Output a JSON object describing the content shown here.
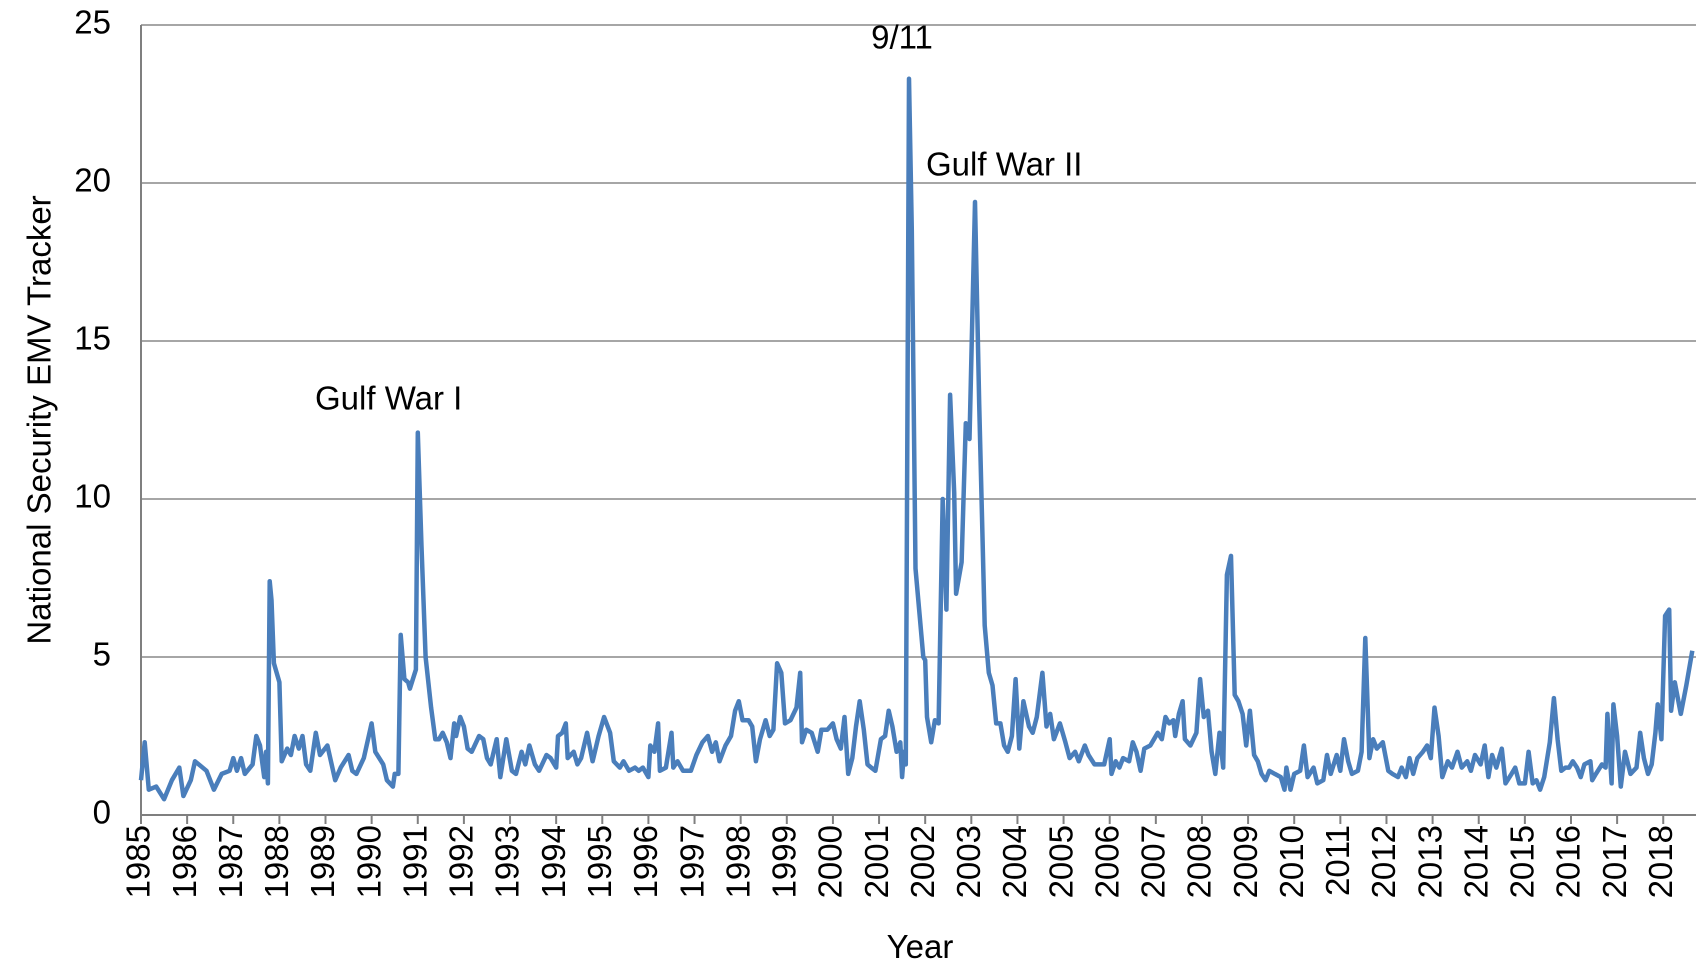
{
  "chart_data": {
    "type": "line",
    "y_label": "National Security EMV Tracker",
    "x_label": "Year",
    "annotations": [
      "9/11",
      "Gulf War II",
      "Gulf War I"
    ],
    "color": "#4a7ebb",
    "grid": true,
    "xlim": [
      1985,
      2018.71
    ],
    "xticks": [
      1985,
      1986,
      1987,
      1988,
      1989,
      1990,
      1991,
      1992,
      1993,
      1994,
      1995,
      1996,
      1997,
      1998,
      1999,
      2000,
      2001,
      2002,
      2003,
      2004,
      2005,
      2006,
      2007,
      2008,
      2009,
      2010,
      2011,
      2012,
      2013,
      2014,
      2015,
      2016,
      2017,
      2018
    ],
    "ylim": [
      0,
      25
    ],
    "yticks": [
      0,
      5,
      10,
      15,
      20,
      25
    ],
    "x": [
      1985.0,
      1985.08,
      1985.17,
      1985.33,
      1985.5,
      1985.67,
      1985.83,
      1985.92,
      1986.08,
      1986.17,
      1986.42,
      1986.58,
      1986.75,
      1986.92,
      1987.0,
      1987.08,
      1987.17,
      1987.25,
      1987.42,
      1987.5,
      1987.58,
      1987.67,
      1987.71,
      1987.75,
      1987.79,
      1987.83,
      1987.88,
      1988.0,
      1988.05,
      1988.17,
      1988.25,
      1988.33,
      1988.42,
      1988.5,
      1988.58,
      1988.67,
      1988.79,
      1988.88,
      1989.04,
      1989.21,
      1989.33,
      1989.5,
      1989.58,
      1989.67,
      1989.83,
      1990.0,
      1990.08,
      1990.25,
      1990.33,
      1990.46,
      1990.5,
      1990.58,
      1990.63,
      1990.71,
      1990.79,
      1990.83,
      1990.96,
      1991.0,
      1991.08,
      1991.17,
      1991.29,
      1991.38,
      1991.46,
      1991.54,
      1991.63,
      1991.71,
      1991.79,
      1991.83,
      1991.92,
      1992.0,
      1992.08,
      1992.17,
      1992.33,
      1992.42,
      1992.5,
      1992.58,
      1992.71,
      1992.79,
      1992.92,
      1993.04,
      1993.13,
      1993.25,
      1993.33,
      1993.42,
      1993.54,
      1993.63,
      1993.79,
      1993.88,
      1994.0,
      1994.04,
      1994.13,
      1994.21,
      1994.25,
      1994.38,
      1994.46,
      1994.54,
      1994.67,
      1994.79,
      1994.92,
      1995.04,
      1995.17,
      1995.25,
      1995.38,
      1995.46,
      1995.58,
      1995.71,
      1995.79,
      1995.88,
      1996.0,
      1996.04,
      1996.13,
      1996.21,
      1996.25,
      1996.38,
      1996.5,
      1996.54,
      1996.63,
      1996.75,
      1996.92,
      1997.04,
      1997.17,
      1997.29,
      1997.38,
      1997.46,
      1997.54,
      1997.67,
      1997.79,
      1997.88,
      1997.96,
      1998.04,
      1998.17,
      1998.25,
      1998.33,
      1998.42,
      1998.54,
      1998.63,
      1998.71,
      1998.79,
      1998.88,
      1998.96,
      1999.08,
      1999.21,
      1999.29,
      1999.33,
      1999.42,
      1999.54,
      1999.67,
      1999.75,
      1999.88,
      2000.0,
      2000.08,
      2000.17,
      2000.25,
      2000.33,
      2000.42,
      2000.5,
      2000.58,
      2000.67,
      2000.75,
      2000.83,
      2000.92,
      2001.04,
      2001.13,
      2001.21,
      2001.29,
      2001.38,
      2001.46,
      2001.5,
      2001.54,
      2001.58,
      2001.65,
      2001.71,
      2001.79,
      2001.88,
      2001.96,
      2002.0,
      2002.04,
      2002.13,
      2002.21,
      2002.29,
      2002.38,
      2002.46,
      2002.54,
      2002.63,
      2002.67,
      2002.79,
      2002.88,
      2002.96,
      2003.08,
      2003.17,
      2003.29,
      2003.38,
      2003.46,
      2003.54,
      2003.63,
      2003.71,
      2003.79,
      2003.88,
      2003.96,
      2004.04,
      2004.13,
      2004.25,
      2004.33,
      2004.42,
      2004.54,
      2004.63,
      2004.71,
      2004.79,
      2004.92,
      2005.04,
      2005.13,
      2005.25,
      2005.33,
      2005.46,
      2005.54,
      2005.67,
      2005.79,
      2005.88,
      2006.0,
      2006.04,
      2006.13,
      2006.21,
      2006.29,
      2006.42,
      2006.5,
      2006.58,
      2006.67,
      2006.75,
      2006.88,
      2006.96,
      2007.04,
      2007.13,
      2007.21,
      2007.29,
      2007.38,
      2007.42,
      2007.5,
      2007.58,
      2007.63,
      2007.75,
      2007.88,
      2007.96,
      2008.04,
      2008.13,
      2008.21,
      2008.29,
      2008.38,
      2008.46,
      2008.54,
      2008.63,
      2008.71,
      2008.79,
      2008.88,
      2008.96,
      2009.04,
      2009.13,
      2009.21,
      2009.29,
      2009.38,
      2009.46,
      2009.58,
      2009.71,
      2009.79,
      2009.83,
      2009.92,
      2010.0,
      2010.13,
      2010.21,
      2010.29,
      2010.42,
      2010.5,
      2010.63,
      2010.71,
      2010.79,
      2010.92,
      2011.0,
      2011.08,
      2011.17,
      2011.25,
      2011.38,
      2011.46,
      2011.54,
      2011.63,
      2011.71,
      2011.79,
      2011.92,
      2012.04,
      2012.13,
      2012.25,
      2012.33,
      2012.42,
      2012.5,
      2012.58,
      2012.67,
      2012.79,
      2012.88,
      2012.96,
      2013.04,
      2013.13,
      2013.21,
      2013.33,
      2013.42,
      2013.54,
      2013.63,
      2013.75,
      2013.83,
      2013.92,
      2014.04,
      2014.13,
      2014.21,
      2014.29,
      2014.38,
      2014.5,
      2014.58,
      2014.71,
      2014.79,
      2014.88,
      2015.0,
      2015.08,
      2015.17,
      2015.25,
      2015.33,
      2015.42,
      2015.54,
      2015.63,
      2015.71,
      2015.79,
      2015.88,
      2015.96,
      2016.04,
      2016.13,
      2016.21,
      2016.29,
      2016.42,
      2016.46,
      2016.54,
      2016.67,
      2016.75,
      2016.79,
      2016.88,
      2016.92,
      2017.0,
      2017.08,
      2017.17,
      2017.29,
      2017.42,
      2017.5,
      2017.58,
      2017.67,
      2017.75,
      2017.83,
      2017.88,
      2017.96,
      2018.04,
      2018.13,
      2018.17,
      2018.25,
      2018.38,
      2018.5,
      2018.63
    ],
    "values": [
      1.1,
      2.3,
      0.8,
      0.9,
      0.5,
      1.1,
      1.5,
      0.6,
      1.1,
      1.7,
      1.4,
      0.8,
      1.3,
      1.4,
      1.8,
      1.4,
      1.8,
      1.3,
      1.6,
      2.5,
      2.2,
      1.2,
      2.0,
      1.0,
      7.4,
      6.8,
      4.8,
      4.2,
      1.7,
      2.1,
      1.9,
      2.5,
      2.1,
      2.5,
      1.6,
      1.4,
      2.6,
      1.9,
      2.2,
      1.1,
      1.5,
      1.9,
      1.4,
      1.3,
      1.8,
      2.9,
      2.0,
      1.6,
      1.1,
      0.9,
      1.3,
      1.3,
      5.7,
      4.3,
      4.2,
      4.0,
      4.6,
      12.1,
      8.5,
      5.0,
      3.4,
      2.4,
      2.4,
      2.6,
      2.3,
      1.8,
      2.9,
      2.5,
      3.1,
      2.8,
      2.1,
      2.0,
      2.5,
      2.4,
      1.8,
      1.6,
      2.4,
      1.2,
      2.4,
      1.4,
      1.3,
      2.0,
      1.6,
      2.2,
      1.6,
      1.4,
      1.9,
      1.8,
      1.5,
      2.5,
      2.6,
      2.9,
      1.8,
      2.0,
      1.6,
      1.8,
      2.6,
      1.7,
      2.5,
      3.1,
      2.6,
      1.7,
      1.5,
      1.7,
      1.4,
      1.5,
      1.4,
      1.5,
      1.2,
      2.2,
      2.0,
      2.9,
      1.4,
      1.5,
      2.6,
      1.5,
      1.7,
      1.4,
      1.4,
      1.9,
      2.3,
      2.5,
      2.0,
      2.3,
      1.7,
      2.2,
      2.5,
      3.3,
      3.6,
      3.0,
      3.0,
      2.8,
      1.7,
      2.4,
      3.0,
      2.5,
      2.7,
      4.8,
      4.5,
      2.9,
      3.0,
      3.4,
      4.5,
      2.3,
      2.7,
      2.6,
      2.0,
      2.7,
      2.7,
      2.9,
      2.4,
      2.1,
      3.1,
      1.3,
      1.8,
      2.8,
      3.6,
      2.7,
      1.6,
      1.5,
      1.4,
      2.4,
      2.5,
      3.3,
      2.8,
      2.0,
      2.3,
      1.2,
      2.0,
      1.6,
      23.3,
      18.5,
      7.8,
      6.3,
      5.0,
      4.9,
      3.1,
      2.3,
      3.0,
      2.9,
      10.0,
      6.5,
      13.3,
      10.2,
      7.0,
      8.0,
      12.4,
      11.9,
      19.4,
      13.0,
      6.0,
      4.5,
      4.1,
      2.9,
      2.9,
      2.2,
      2.0,
      2.5,
      4.3,
      2.1,
      3.6,
      2.8,
      2.6,
      3.1,
      4.5,
      2.8,
      3.2,
      2.4,
      2.9,
      2.3,
      1.8,
      2.0,
      1.7,
      2.2,
      1.9,
      1.6,
      1.6,
      1.6,
      2.4,
      1.3,
      1.7,
      1.5,
      1.8,
      1.7,
      2.3,
      2.0,
      1.4,
      2.1,
      2.2,
      2.4,
      2.6,
      2.4,
      3.1,
      2.9,
      3.0,
      2.5,
      3.2,
      3.6,
      2.4,
      2.2,
      2.6,
      4.3,
      3.1,
      3.3,
      2.0,
      1.3,
      2.6,
      1.5,
      7.6,
      8.2,
      3.8,
      3.6,
      3.2,
      2.2,
      3.3,
      1.9,
      1.7,
      1.3,
      1.1,
      1.4,
      1.3,
      1.2,
      0.8,
      1.5,
      0.8,
      1.3,
      1.4,
      2.2,
      1.2,
      1.5,
      1.0,
      1.1,
      1.9,
      1.3,
      1.9,
      1.4,
      2.4,
      1.7,
      1.3,
      1.4,
      2.0,
      5.6,
      1.8,
      2.4,
      2.1,
      2.3,
      1.4,
      1.3,
      1.2,
      1.5,
      1.2,
      1.8,
      1.3,
      1.8,
      2.0,
      2.2,
      1.8,
      3.4,
      2.5,
      1.2,
      1.7,
      1.5,
      2.0,
      1.5,
      1.7,
      1.4,
      1.9,
      1.6,
      2.2,
      1.2,
      1.9,
      1.5,
      2.1,
      1.0,
      1.3,
      1.5,
      1.0,
      1.0,
      2.0,
      1.0,
      1.1,
      0.8,
      1.2,
      2.3,
      3.7,
      2.4,
      1.4,
      1.5,
      1.5,
      1.7,
      1.5,
      1.2,
      1.6,
      1.7,
      1.1,
      1.3,
      1.6,
      1.5,
      3.2,
      1.0,
      3.5,
      2.5,
      0.9,
      2.0,
      1.3,
      1.5,
      2.6,
      1.8,
      1.3,
      1.6,
      2.6,
      3.5,
      2.4,
      6.3,
      6.5,
      3.3,
      4.2,
      3.2,
      4.1,
      5.2
    ]
  }
}
